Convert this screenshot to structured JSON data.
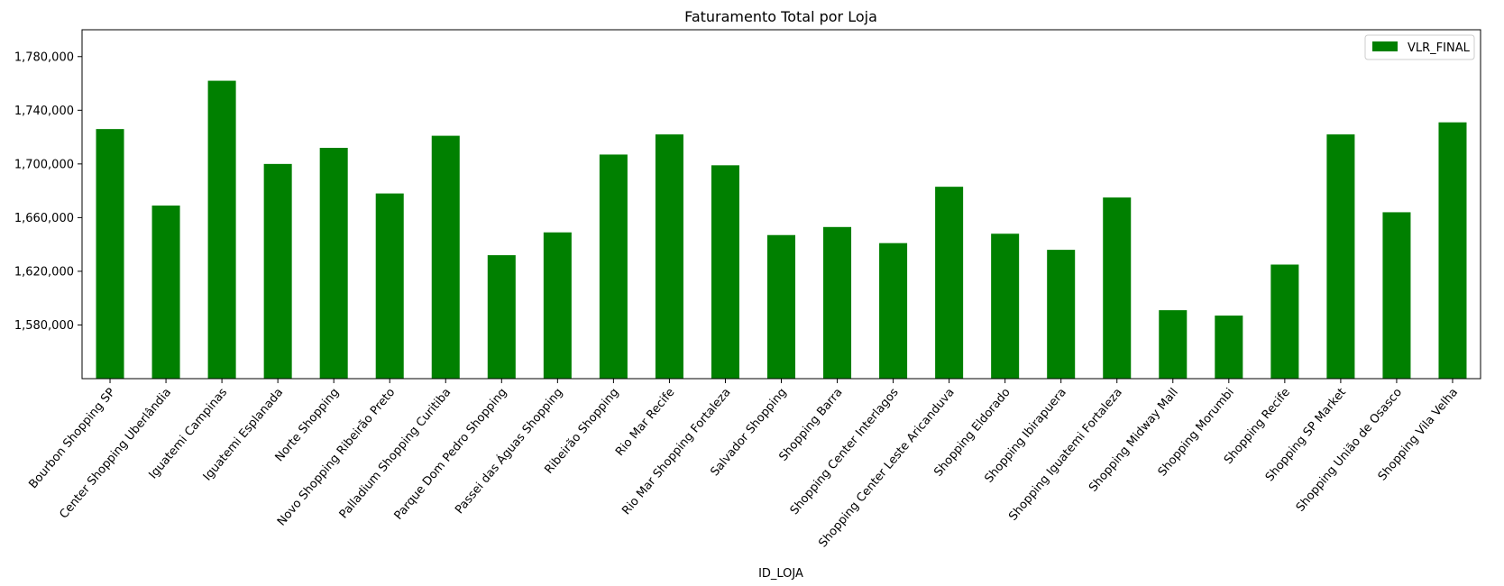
{
  "chart_data": {
    "type": "bar",
    "title": "Faturamento Total por Loja",
    "xlabel": "ID_LOJA",
    "ylabel": "",
    "ylim": [
      1540000,
      1800000
    ],
    "yticks": [
      1580000,
      1620000,
      1660000,
      1700000,
      1740000,
      1780000
    ],
    "ytick_labels": [
      "1,580,000",
      "1,620,000",
      "1,660,000",
      "1,700,000",
      "1,740,000",
      "1,780,000"
    ],
    "grid": false,
    "legend_position": "top-right",
    "bar_color": "#008000",
    "categories": [
      "Bourbon Shopping SP",
      "Center Shopping Uberlândia",
      "Iguatemi Campinas",
      "Iguatemi Esplanada",
      "Norte Shopping",
      "Novo Shopping Ribeirão Preto",
      "Palladium Shopping Curitiba",
      "Parque Dom Pedro Shopping",
      "Passei das Águas Shopping",
      "Ribeirão Shopping",
      "Rio Mar Recife",
      "Rio Mar Shopping Fortaleza",
      "Salvador Shopping",
      "Shopping Barra",
      "Shopping Center Interlagos",
      "Shopping Center Leste Aricanduva",
      "Shopping Eldorado",
      "Shopping Ibirapuera",
      "Shopping Iguatemi Fortaleza",
      "Shopping Midway Mall",
      "Shopping Morumbi",
      "Shopping Recife",
      "Shopping SP Market",
      "Shopping União de Osasco",
      "Shopping Vila Velha"
    ],
    "series": [
      {
        "name": "VLR_FINAL",
        "values": [
          1726000,
          1669000,
          1762000,
          1700000,
          1712000,
          1678000,
          1721000,
          1632000,
          1649000,
          1707000,
          1722000,
          1699000,
          1647000,
          1653000,
          1641000,
          1683000,
          1648000,
          1636000,
          1675000,
          1591000,
          1587000,
          1625000,
          1722000,
          1664000,
          1731000
        ]
      }
    ]
  }
}
